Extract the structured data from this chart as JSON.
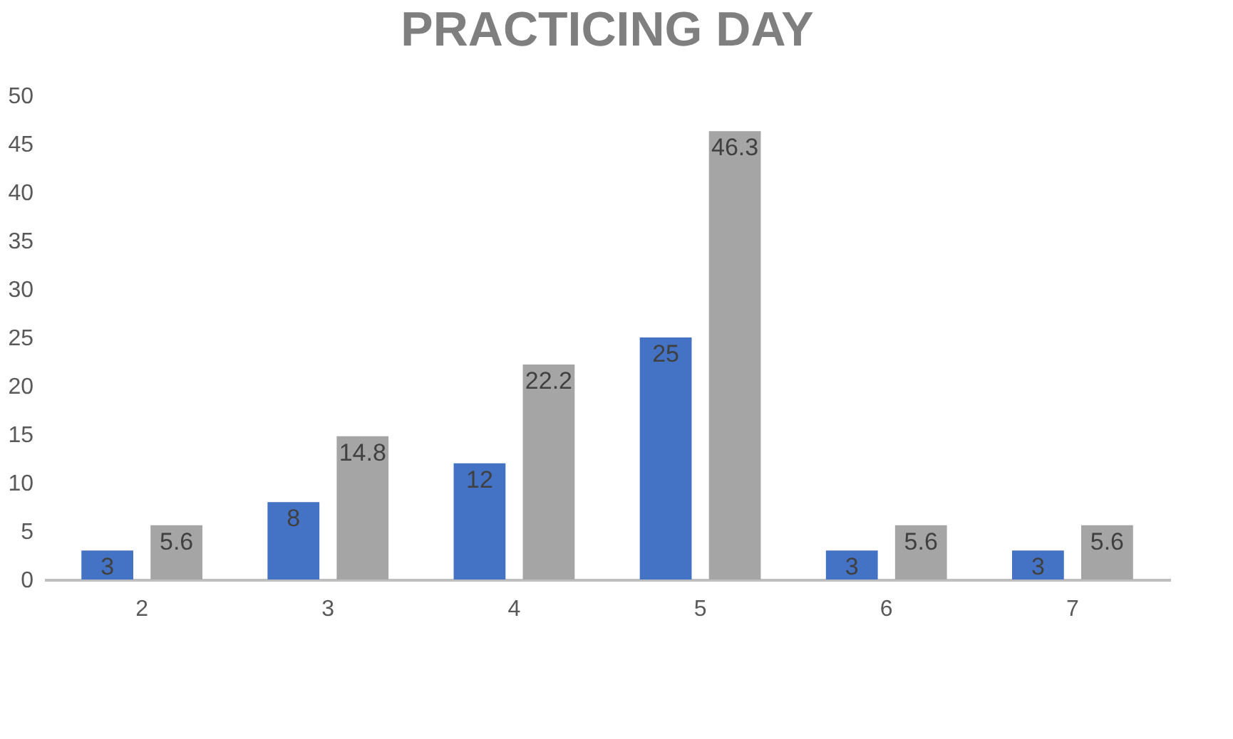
{
  "chart_data": {
    "type": "bar",
    "title": "PRACTICING DAY",
    "categories": [
      "2",
      "3",
      "4",
      "5",
      "6",
      "7"
    ],
    "series": [
      {
        "color": "#4472c4",
        "values": [
          3,
          8,
          12,
          25,
          3,
          3
        ]
      },
      {
        "color": "#a5a5a5",
        "values": [
          5.6,
          14.8,
          22.2,
          46.3,
          5.6,
          5.6
        ]
      }
    ],
    "ylim": [
      0,
      50
    ],
    "yticks": [
      0,
      5,
      10,
      15,
      20,
      25,
      30,
      35,
      40,
      45,
      50
    ],
    "grid": false,
    "data_labels": true
  }
}
